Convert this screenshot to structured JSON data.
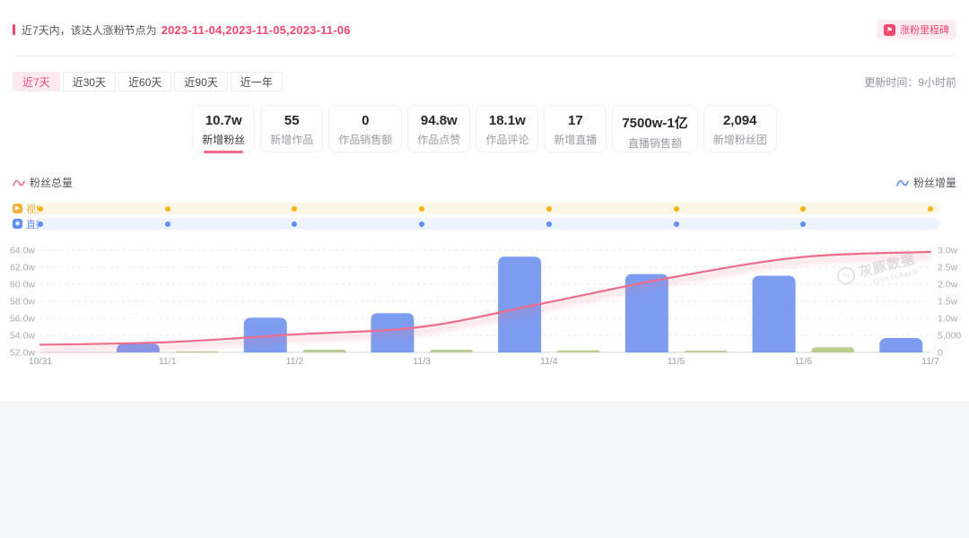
{
  "colors": {
    "accent": "#f5476f",
    "bar_blue": "#7d9cf0",
    "bar_green": "#b8cf90",
    "line_pink": "#ed6d8e",
    "video_orange": "#f7b500",
    "live_blue": "#5c8df5"
  },
  "notice": {
    "prefix": "近7天内，该达人涨粉节点为",
    "dates": "2023-11-04,2023-11-05,2023-11-06",
    "badge": "涨粉里程碑"
  },
  "tabs": {
    "items": [
      "近7天",
      "近30天",
      "近60天",
      "近90天",
      "近一年"
    ],
    "active_index": 0,
    "update_time": "更新时间：9小时前"
  },
  "stats": [
    {
      "value": "10.7w",
      "label": "新增粉丝",
      "active": true
    },
    {
      "value": "55",
      "label": "新增作品",
      "active": false
    },
    {
      "value": "0",
      "label": "作品销售额",
      "active": false
    },
    {
      "value": "94.8w",
      "label": "作品点赞",
      "active": false
    },
    {
      "value": "18.1w",
      "label": "作品评论",
      "active": false
    },
    {
      "value": "17",
      "label": "新增直播",
      "active": false
    },
    {
      "value": "7500w-1亿",
      "label": "直播销售额",
      "active": false
    },
    {
      "value": "2,094",
      "label": "新增粉丝团",
      "active": false
    }
  ],
  "legend": {
    "left": "粉丝总量",
    "right": "粉丝增量"
  },
  "tracks": {
    "video": {
      "label": "视频",
      "dot_count": 8
    },
    "live": {
      "label": "直播",
      "dot_count": 7
    }
  },
  "chart_data": {
    "type": "bar+line",
    "x": [
      "10/31",
      "11/1",
      "11/2",
      "11/3",
      "11/4",
      "11/5",
      "11/6",
      "11/7"
    ],
    "left_axis": {
      "title": "粉丝总量",
      "ticks": [
        "52.0w",
        "54.0w",
        "56.0w",
        "58.0w",
        "60.0w",
        "62.0w",
        "64.0w"
      ],
      "min_w": 52,
      "max_w": 64
    },
    "right_axis": {
      "title": "粉丝增量",
      "ticks": [
        "0",
        "5,000",
        "1.0w",
        "1.5w",
        "2.0w",
        "2.5w",
        "3.0w"
      ],
      "min": 0,
      "max": 30000
    },
    "series": [
      {
        "name": "粉丝总量",
        "type": "line",
        "axis": "left",
        "values_w": [
          52.9,
          53.2,
          54.1,
          55.0,
          57.9,
          60.9,
          63.2,
          63.8
        ]
      },
      {
        "name": "粉丝增量",
        "type": "bar",
        "axis": "right",
        "values": [
          2600,
          10200,
          11500,
          28100,
          23000,
          22500,
          4200
        ]
      },
      {
        "name": "bar-green",
        "type": "bar",
        "axis": "right",
        "values": [
          0,
          300,
          800,
          800,
          600,
          500,
          1500
        ]
      }
    ],
    "grid": "dashed-horizontal",
    "legend_position": "above-left-and-right"
  },
  "watermark": {
    "name": "灰豚数据",
    "code": "f3XKTuAazG",
    "glyph": "∿"
  }
}
